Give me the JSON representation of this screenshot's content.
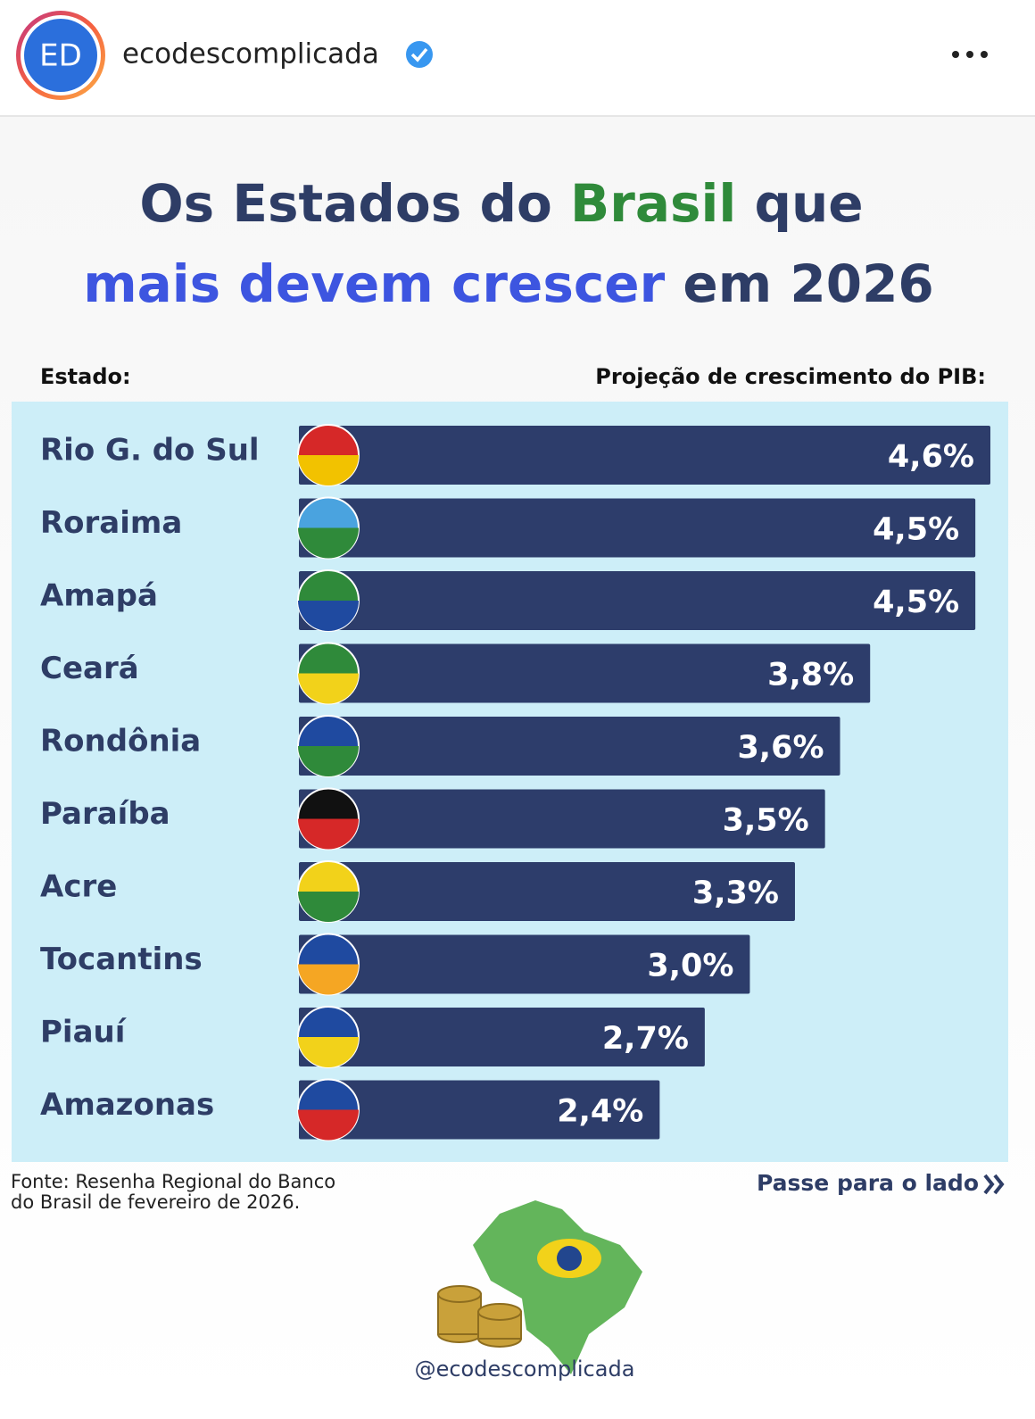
{
  "header": {
    "avatar": "ED",
    "username": "ecodescomplicada"
  },
  "post": {
    "title_line1": [
      "Os Estados do",
      "Brasil",
      "que"
    ],
    "title_line2": [
      "mais devem crescer",
      "em 2026"
    ],
    "column_left": "Estado:",
    "column_right": "Projeção de crescimento do PIB:",
    "source_lines": [
      "Fonte: Resenha Regional do Banco",
      "do Brasil de fevereiro de 2026."
    ],
    "swipe": "Passe para o lado",
    "watermark": "@ecodescomplicada"
  },
  "chart_data": {
    "type": "bar",
    "orientation": "horizontal",
    "color": "#2d3d6b",
    "categories": [
      "Rio G. do Sul",
      "Roraima",
      "Amapá",
      "Ceará",
      "Rondônia",
      "Paraíba",
      "Acre",
      "Tocantins",
      "Piauí",
      "Amazonas"
    ],
    "values": [
      4.6,
      4.5,
      4.5,
      3.8,
      3.6,
      3.5,
      3.3,
      3.0,
      2.7,
      2.4
    ],
    "value_labels": [
      "4,6%",
      "4,5%",
      "4,5%",
      "3,8%",
      "3,6%",
      "3,5%",
      "3,3%",
      "3,0%",
      "2,7%",
      "2,4%"
    ]
  }
}
